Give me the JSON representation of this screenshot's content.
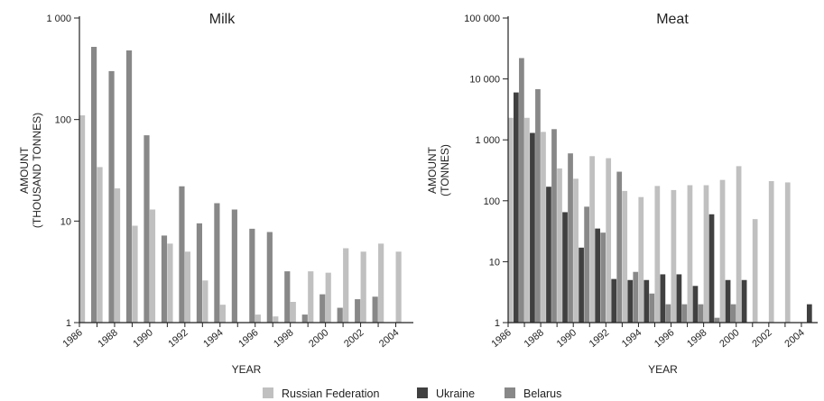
{
  "chart_data": [
    {
      "type": "bar",
      "title": "Milk",
      "xlabel": "YEAR",
      "ylabel": [
        "AMOUNT",
        "(THOUSAND TONNES)"
      ],
      "yscale": "log",
      "ylim": [
        1,
        1000
      ],
      "yticks": [
        1,
        10,
        100,
        1000
      ],
      "ytick_labels": [
        "1",
        "10",
        "100",
        "1 000"
      ],
      "x_tick_labels": [
        "1986",
        "1988",
        "1990",
        "1992",
        "1994",
        "1996",
        "1998",
        "2000",
        "2002",
        "2004"
      ],
      "categories": [
        "1986",
        "1987",
        "1988",
        "1989",
        "1990",
        "1991",
        "1992",
        "1993",
        "1994",
        "1995",
        "1996",
        "1997",
        "1998",
        "1999",
        "2000",
        "2001",
        "2002",
        "2003",
        "2004"
      ],
      "series": [
        {
          "name": "Russian Federation",
          "values": [
            110,
            34,
            21,
            9,
            13,
            6,
            5,
            2.6,
            1.5,
            null,
            1.2,
            1.15,
            1.6,
            3.2,
            3.1,
            5.4,
            5.0,
            6.0,
            5.0
          ]
        },
        {
          "name": "Ukraine",
          "values": [
            null,
            null,
            null,
            null,
            null,
            null,
            null,
            null,
            null,
            null,
            null,
            null,
            null,
            null,
            null,
            null,
            null,
            null,
            null
          ]
        },
        {
          "name": "Belarus",
          "values": [
            520,
            300,
            480,
            70,
            7.2,
            22,
            9.5,
            15,
            13,
            8.4,
            7.8,
            3.2,
            1.2,
            1.9,
            1.4,
            1.7,
            1.8,
            null,
            null
          ]
        }
      ]
    },
    {
      "type": "bar",
      "title": "Meat",
      "xlabel": "YEAR",
      "ylabel": [
        "AMOUNT",
        "(TONNES)"
      ],
      "yscale": "log",
      "ylim": [
        1,
        100000
      ],
      "yticks": [
        1,
        10,
        100,
        1000,
        10000,
        100000
      ],
      "ytick_labels": [
        "1",
        "10",
        "100",
        "1 000",
        "10 000",
        "100 000"
      ],
      "x_tick_labels": [
        "1986",
        "1988",
        "1990",
        "1992",
        "1994",
        "1996",
        "1998",
        "2000",
        "2002",
        "2004"
      ],
      "categories": [
        "1986",
        "1987",
        "1988",
        "1989",
        "1990",
        "1991",
        "1992",
        "1993",
        "1994",
        "1995",
        "1996",
        "1997",
        "1998",
        "1999",
        "2000",
        "2001",
        "2002",
        "2003",
        "2004"
      ],
      "series": [
        {
          "name": "Russian Federation",
          "values": [
            2300,
            2300,
            1350,
            340,
            230,
            540,
            500,
            145,
            115,
            175,
            150,
            180,
            180,
            220,
            370,
            50,
            210,
            200,
            null
          ]
        },
        {
          "name": "Ukraine",
          "values": [
            6000,
            1300,
            170,
            65,
            17,
            35,
            5.2,
            5,
            5,
            6.2,
            6.2,
            4,
            60,
            5,
            5,
            null,
            null,
            null,
            2
          ]
        },
        {
          "name": "Belarus",
          "values": [
            22000,
            6800,
            1500,
            600,
            80,
            30,
            300,
            6.8,
            3,
            2,
            2,
            2,
            1.2,
            2,
            null,
            null,
            null,
            null,
            null
          ]
        }
      ]
    }
  ],
  "legend": {
    "position": "bottom-center",
    "items": [
      {
        "name": "Russian Federation",
        "color": "#c0c0c0"
      },
      {
        "name": "Ukraine",
        "color": "#404040"
      },
      {
        "name": "Belarus",
        "color": "#888888"
      }
    ]
  }
}
